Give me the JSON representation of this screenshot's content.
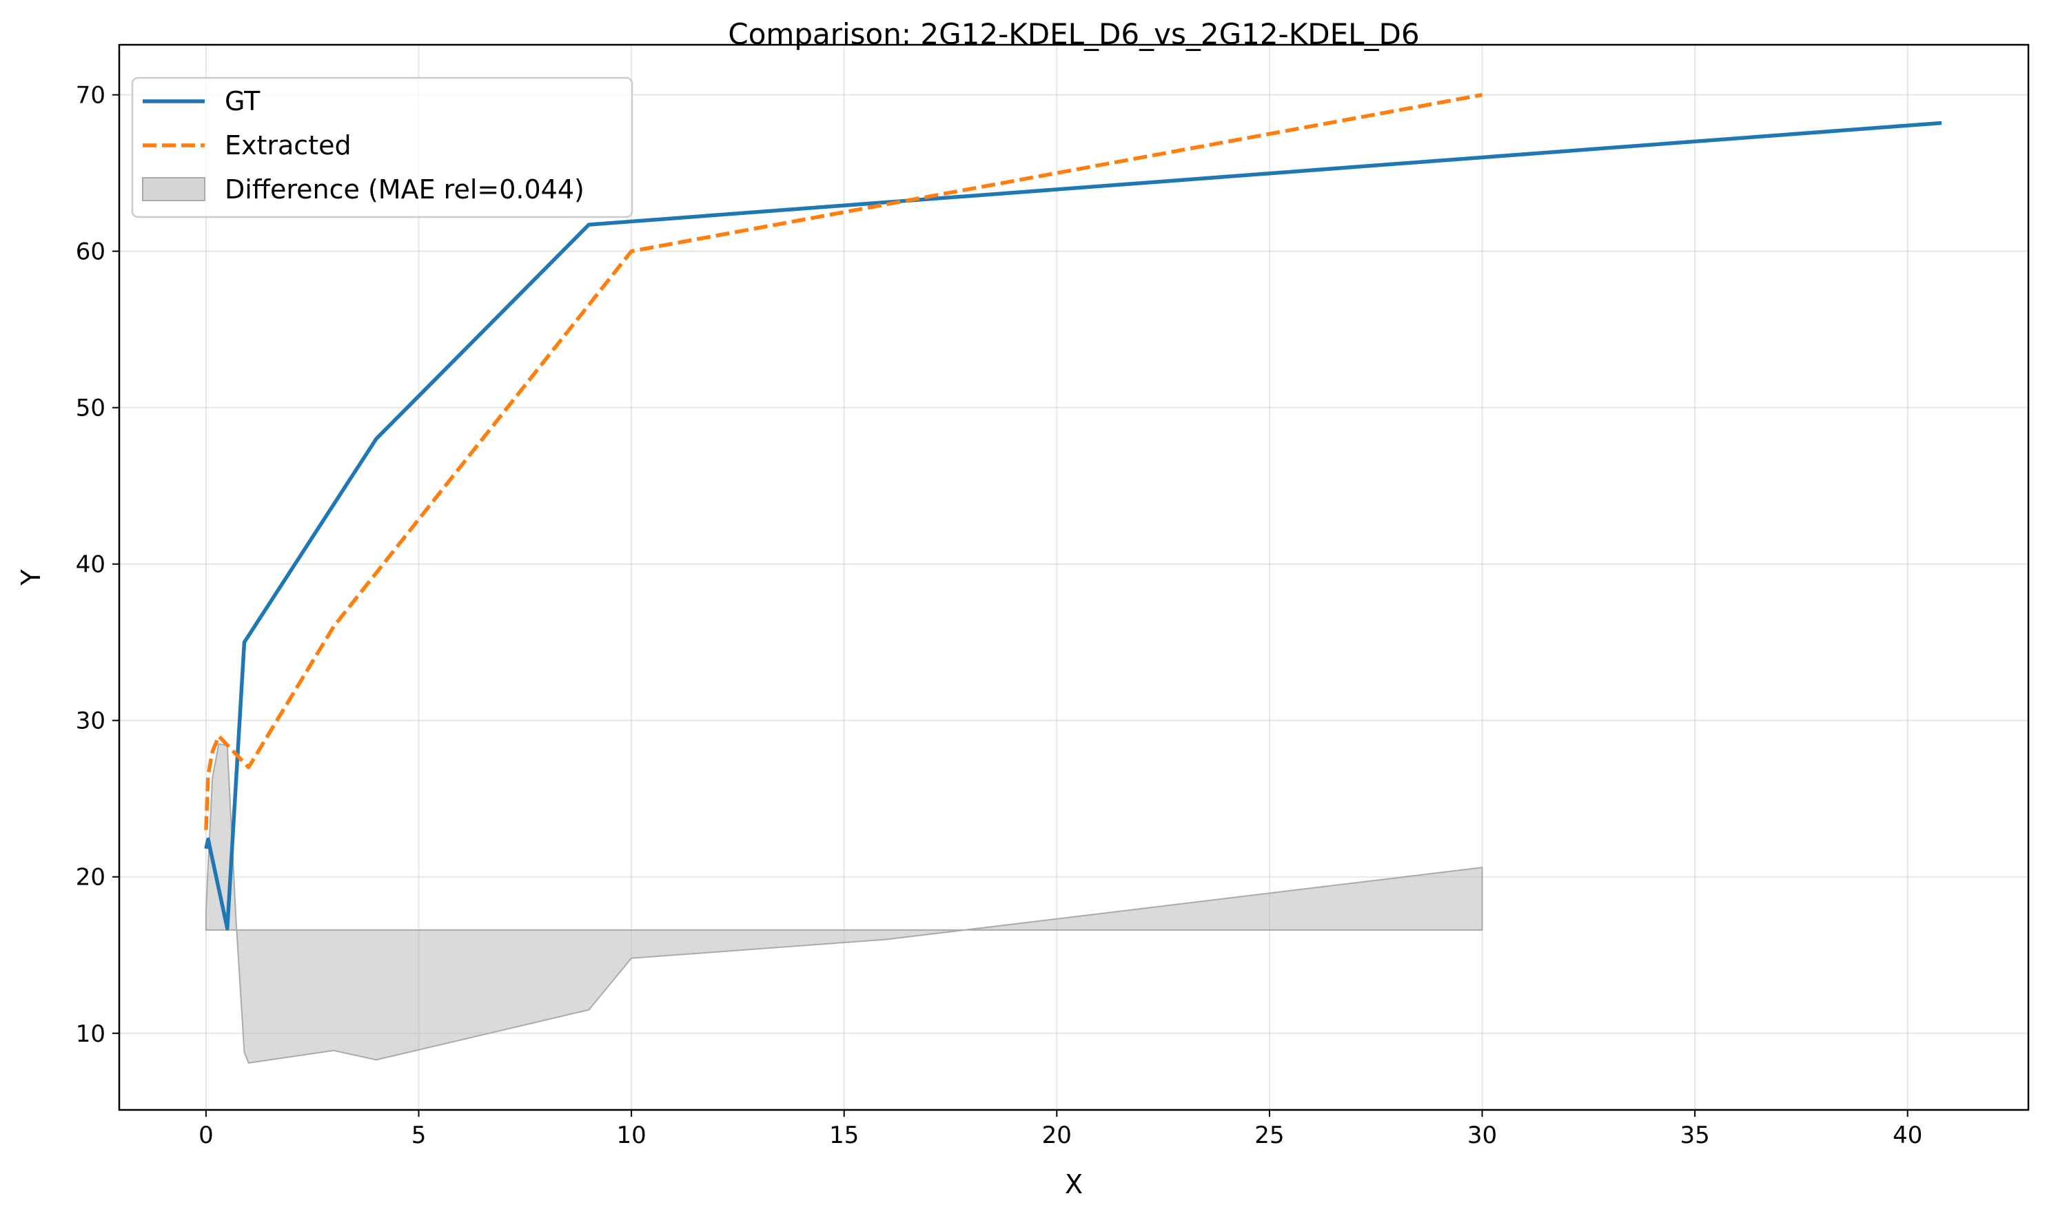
{
  "chart_data": {
    "type": "line",
    "title": "Comparison: 2G12-KDEL_D6_vs_2G12-KDEL_D6",
    "xlabel": "X",
    "ylabel": "Y",
    "xlim": [
      -2.04,
      42.84
    ],
    "ylim": [
      5.1,
      73.2
    ],
    "xticks": [
      0,
      5,
      10,
      15,
      20,
      25,
      30,
      35,
      40
    ],
    "yticks": [
      10,
      20,
      30,
      40,
      50,
      60,
      70
    ],
    "grid": true,
    "legend_position": "top-left",
    "series": [
      {
        "name": "GT",
        "style": "solid",
        "color": "#1f77b4",
        "x": [
          0.0,
          0.05,
          0.5,
          0.9,
          4.0,
          9.0,
          30.0,
          40.8
        ],
        "y": [
          21.8,
          22.4,
          16.7,
          35.0,
          48.0,
          61.7,
          66.0,
          68.2
        ]
      },
      {
        "name": "Extracted",
        "style": "dashed",
        "color": "#ff7f0e",
        "x": [
          0.0,
          0.05,
          0.15,
          0.3,
          1.0,
          3.0,
          10.0,
          16.0,
          30.0
        ],
        "y": [
          23.0,
          26.5,
          28.0,
          29.0,
          27.0,
          36.0,
          60.0,
          63.0,
          70.0
        ]
      },
      {
        "name": "Difference (MAE rel=0.044)",
        "style": "fill",
        "color": "#bbbbbb",
        "baseline": 16.6,
        "x": [
          0.0,
          0.05,
          0.15,
          0.3,
          0.5,
          0.7,
          0.9,
          1.0,
          3.0,
          4.0,
          9.0,
          10.0,
          16.0,
          30.0
        ],
        "y": [
          17.8,
          20.7,
          26.3,
          28.5,
          28.4,
          17.5,
          8.8,
          8.1,
          8.9,
          8.3,
          11.5,
          14.8,
          16.0,
          20.6
        ]
      }
    ]
  }
}
